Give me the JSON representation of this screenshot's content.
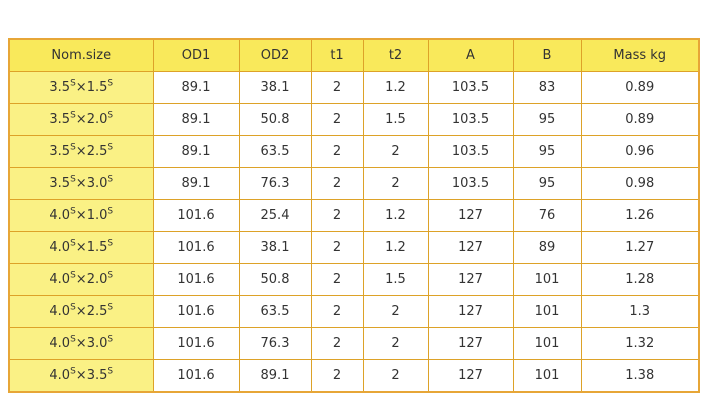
{
  "colors": {
    "page_bg": "#FFFFFF",
    "header_bg": "#F9E95B",
    "first_column_bg": "#FAF185",
    "border": "#DDA228",
    "text": "#333333"
  },
  "chart_data": {
    "type": "table",
    "title": "",
    "columns": [
      "Nom.size",
      "OD1",
      "OD2",
      "t1",
      "t2",
      "A",
      "B",
      "Mass kg"
    ],
    "rows": [
      {
        "nom": [
          "3.5",
          "S",
          "×",
          "1.5",
          "S"
        ],
        "values": [
          "89.1",
          "38.1",
          "2",
          "1.2",
          "103.5",
          "83",
          "0.89"
        ]
      },
      {
        "nom": [
          "3.5",
          "S",
          "×",
          "2.0",
          "S"
        ],
        "values": [
          "89.1",
          "50.8",
          "2",
          "1.5",
          "103.5",
          "95",
          "0.89"
        ]
      },
      {
        "nom": [
          "3.5",
          "S",
          "×",
          "2.5",
          "S"
        ],
        "values": [
          "89.1",
          "63.5",
          "2",
          "2",
          "103.5",
          "95",
          "0.96"
        ]
      },
      {
        "nom": [
          "3.5",
          "S",
          "×",
          "3.0",
          "S"
        ],
        "values": [
          "89.1",
          "76.3",
          "2",
          "2",
          "103.5",
          "95",
          "0.98"
        ]
      },
      {
        "nom": [
          "4.0",
          "S",
          "×",
          "1.0",
          "S"
        ],
        "values": [
          "101.6",
          "25.4",
          "2",
          "1.2",
          "127",
          "76",
          "1.26"
        ]
      },
      {
        "nom": [
          "4.0",
          "S",
          "×",
          "1.5",
          "S"
        ],
        "values": [
          "101.6",
          "38.1",
          "2",
          "1.2",
          "127",
          "89",
          "1.27"
        ]
      },
      {
        "nom": [
          "4.0",
          "S",
          "×",
          "2.0",
          "S"
        ],
        "values": [
          "101.6",
          "50.8",
          "2",
          "1.5",
          "127",
          "101",
          "1.28"
        ]
      },
      {
        "nom": [
          "4.0",
          "S",
          "×",
          "2.5",
          "S"
        ],
        "values": [
          "101.6",
          "63.5",
          "2",
          "2",
          "127",
          "101",
          "1.3"
        ]
      },
      {
        "nom": [
          "4.0",
          "S",
          "×",
          "3.0",
          "S"
        ],
        "values": [
          "101.6",
          "76.3",
          "2",
          "2",
          "127",
          "101",
          "1.32"
        ]
      },
      {
        "nom": [
          "4.0",
          "S",
          "×",
          "3.5",
          "S"
        ],
        "values": [
          "101.6",
          "89.1",
          "2",
          "2",
          "127",
          "101",
          "1.38"
        ]
      }
    ]
  }
}
